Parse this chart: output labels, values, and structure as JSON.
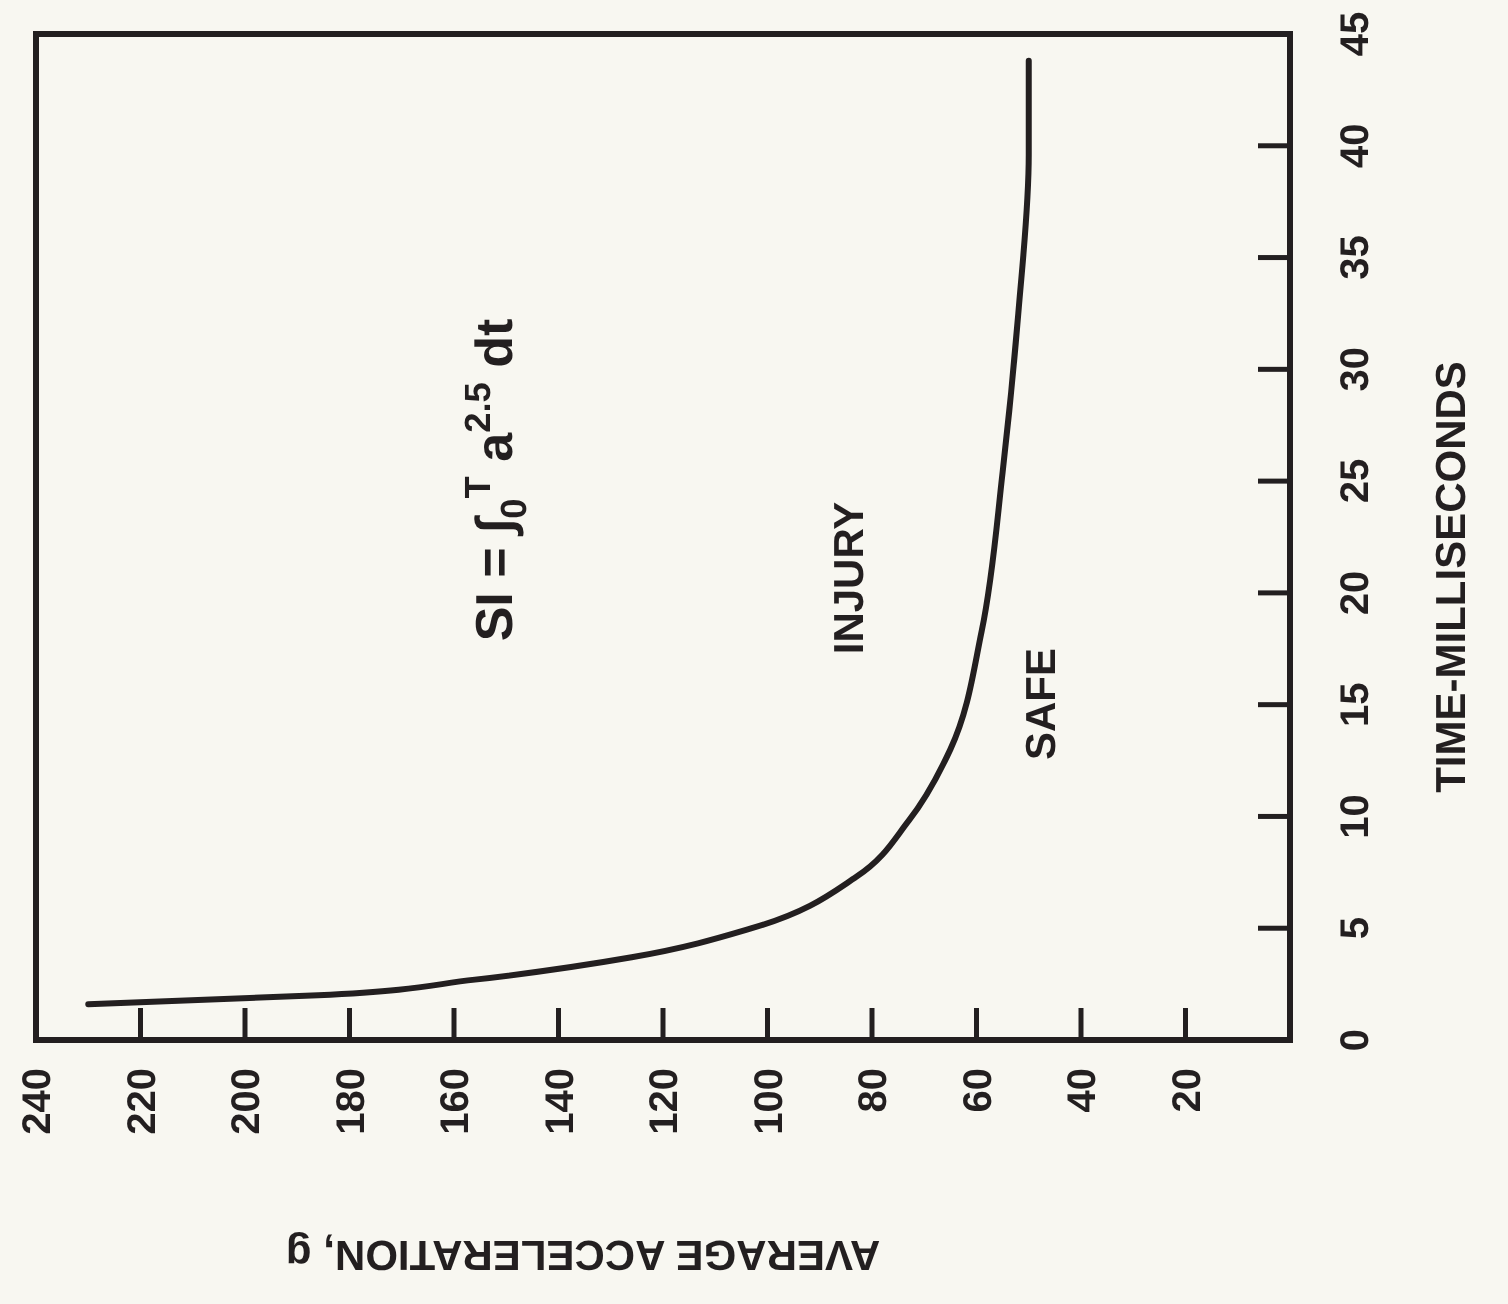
{
  "chart_data": {
    "type": "line",
    "xlabel": "AVERAGE ACCELERATION, g",
    "ylabel": "TIME-MILLISECONDS",
    "x": [
      230,
      186,
      156,
      126,
      103,
      83,
      73,
      65,
      59,
      55,
      52,
      50,
      50
    ],
    "series": [
      {
        "color": "#231f20",
        "values": [
          1.6,
          2.0,
          2.7,
          3.7,
          5.0,
          7.3,
          9.8,
          13,
          18.3,
          25.4,
          32.5,
          39.6,
          43.8
        ]
      }
    ],
    "xlim": [
      240,
      0
    ],
    "xticks": [
      240,
      220,
      200,
      180,
      160,
      140,
      120,
      100,
      80,
      60,
      40,
      20
    ],
    "ylim": [
      0,
      45
    ],
    "yticks": [
      0,
      5,
      10,
      15,
      20,
      25,
      30,
      35,
      40,
      45
    ],
    "marker": "none",
    "line_style": "solid",
    "annotations": [
      "SI = ∫$_{0}$$^{T}$ a$^{2.5}$ dt",
      "INJURY",
      "SAFE"
    ]
  }
}
